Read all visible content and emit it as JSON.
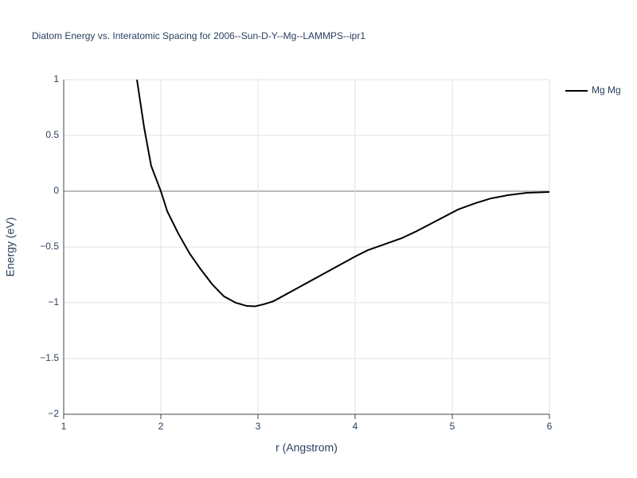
{
  "chart_data": {
    "type": "line",
    "title": "Diatom Energy vs. Interatomic Spacing for 2006--Sun-D-Y--Mg--LAMMPS--ipr1",
    "xlabel": "r (Angstrom)",
    "ylabel": "Energy (eV)",
    "x": [
      1.754,
      1.828,
      1.9,
      2.0,
      2.066,
      2.18,
      2.295,
      2.41,
      2.53,
      2.65,
      2.77,
      2.885,
      2.97,
      3.06,
      3.16,
      3.28,
      4.0,
      4.13,
      4.48,
      4.62,
      5.06,
      5.24,
      5.4,
      5.57,
      5.77,
      6.0
    ],
    "series": [
      {
        "name": "Mg Mg",
        "color": "#000000",
        "values": [
          1,
          0.571,
          0.229,
          0,
          -0.18,
          -0.38,
          -0.557,
          -0.7,
          -0.836,
          -0.943,
          -1.0,
          -1.029,
          -1.032,
          -1.014,
          -0.986,
          -0.929,
          -0.586,
          -0.529,
          -0.421,
          -0.364,
          -0.164,
          -0.107,
          -0.064,
          -0.036,
          -0.014,
          -0.007
        ]
      }
    ],
    "xlim": [
      1,
      6
    ],
    "ylim": [
      -2,
      1
    ],
    "xticks": [
      1,
      2,
      3,
      4,
      5,
      6
    ],
    "yticks": [
      {
        "value": -2,
        "label": "−2"
      },
      {
        "value": -1.5,
        "label": "−1.5"
      },
      {
        "value": -1,
        "label": "−1"
      },
      {
        "value": -0.5,
        "label": "−0.5"
      },
      0,
      0.5,
      1
    ],
    "grid": true,
    "legend": "upper right"
  }
}
